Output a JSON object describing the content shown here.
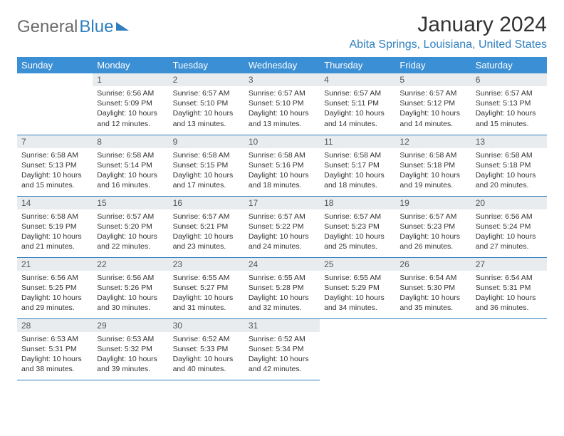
{
  "brand": {
    "part1": "General",
    "part2": "Blue"
  },
  "title": "January 2024",
  "location": "Abita Springs, Louisiana, United States",
  "weekdays": [
    "Sunday",
    "Monday",
    "Tuesday",
    "Wednesday",
    "Thursday",
    "Friday",
    "Saturday"
  ],
  "colors": {
    "header_bg": "#3b8fd4",
    "accent": "#2f7fbf",
    "daynum_bg": "#e9ecef",
    "text": "#333333"
  },
  "start_offset": 1,
  "days": [
    {
      "n": "1",
      "sunrise": "6:56 AM",
      "sunset": "5:09 PM",
      "daylight": "10 hours and 12 minutes."
    },
    {
      "n": "2",
      "sunrise": "6:57 AM",
      "sunset": "5:10 PM",
      "daylight": "10 hours and 13 minutes."
    },
    {
      "n": "3",
      "sunrise": "6:57 AM",
      "sunset": "5:10 PM",
      "daylight": "10 hours and 13 minutes."
    },
    {
      "n": "4",
      "sunrise": "6:57 AM",
      "sunset": "5:11 PM",
      "daylight": "10 hours and 14 minutes."
    },
    {
      "n": "5",
      "sunrise": "6:57 AM",
      "sunset": "5:12 PM",
      "daylight": "10 hours and 14 minutes."
    },
    {
      "n": "6",
      "sunrise": "6:57 AM",
      "sunset": "5:13 PM",
      "daylight": "10 hours and 15 minutes."
    },
    {
      "n": "7",
      "sunrise": "6:58 AM",
      "sunset": "5:13 PM",
      "daylight": "10 hours and 15 minutes."
    },
    {
      "n": "8",
      "sunrise": "6:58 AM",
      "sunset": "5:14 PM",
      "daylight": "10 hours and 16 minutes."
    },
    {
      "n": "9",
      "sunrise": "6:58 AM",
      "sunset": "5:15 PM",
      "daylight": "10 hours and 17 minutes."
    },
    {
      "n": "10",
      "sunrise": "6:58 AM",
      "sunset": "5:16 PM",
      "daylight": "10 hours and 18 minutes."
    },
    {
      "n": "11",
      "sunrise": "6:58 AM",
      "sunset": "5:17 PM",
      "daylight": "10 hours and 18 minutes."
    },
    {
      "n": "12",
      "sunrise": "6:58 AM",
      "sunset": "5:18 PM",
      "daylight": "10 hours and 19 minutes."
    },
    {
      "n": "13",
      "sunrise": "6:58 AM",
      "sunset": "5:18 PM",
      "daylight": "10 hours and 20 minutes."
    },
    {
      "n": "14",
      "sunrise": "6:58 AM",
      "sunset": "5:19 PM",
      "daylight": "10 hours and 21 minutes."
    },
    {
      "n": "15",
      "sunrise": "6:57 AM",
      "sunset": "5:20 PM",
      "daylight": "10 hours and 22 minutes."
    },
    {
      "n": "16",
      "sunrise": "6:57 AM",
      "sunset": "5:21 PM",
      "daylight": "10 hours and 23 minutes."
    },
    {
      "n": "17",
      "sunrise": "6:57 AM",
      "sunset": "5:22 PM",
      "daylight": "10 hours and 24 minutes."
    },
    {
      "n": "18",
      "sunrise": "6:57 AM",
      "sunset": "5:23 PM",
      "daylight": "10 hours and 25 minutes."
    },
    {
      "n": "19",
      "sunrise": "6:57 AM",
      "sunset": "5:23 PM",
      "daylight": "10 hours and 26 minutes."
    },
    {
      "n": "20",
      "sunrise": "6:56 AM",
      "sunset": "5:24 PM",
      "daylight": "10 hours and 27 minutes."
    },
    {
      "n": "21",
      "sunrise": "6:56 AM",
      "sunset": "5:25 PM",
      "daylight": "10 hours and 29 minutes."
    },
    {
      "n": "22",
      "sunrise": "6:56 AM",
      "sunset": "5:26 PM",
      "daylight": "10 hours and 30 minutes."
    },
    {
      "n": "23",
      "sunrise": "6:55 AM",
      "sunset": "5:27 PM",
      "daylight": "10 hours and 31 minutes."
    },
    {
      "n": "24",
      "sunrise": "6:55 AM",
      "sunset": "5:28 PM",
      "daylight": "10 hours and 32 minutes."
    },
    {
      "n": "25",
      "sunrise": "6:55 AM",
      "sunset": "5:29 PM",
      "daylight": "10 hours and 34 minutes."
    },
    {
      "n": "26",
      "sunrise": "6:54 AM",
      "sunset": "5:30 PM",
      "daylight": "10 hours and 35 minutes."
    },
    {
      "n": "27",
      "sunrise": "6:54 AM",
      "sunset": "5:31 PM",
      "daylight": "10 hours and 36 minutes."
    },
    {
      "n": "28",
      "sunrise": "6:53 AM",
      "sunset": "5:31 PM",
      "daylight": "10 hours and 38 minutes."
    },
    {
      "n": "29",
      "sunrise": "6:53 AM",
      "sunset": "5:32 PM",
      "daylight": "10 hours and 39 minutes."
    },
    {
      "n": "30",
      "sunrise": "6:52 AM",
      "sunset": "5:33 PM",
      "daylight": "10 hours and 40 minutes."
    },
    {
      "n": "31",
      "sunrise": "6:52 AM",
      "sunset": "5:34 PM",
      "daylight": "10 hours and 42 minutes."
    }
  ],
  "labels": {
    "sunrise": "Sunrise:",
    "sunset": "Sunset:",
    "daylight": "Daylight:"
  }
}
